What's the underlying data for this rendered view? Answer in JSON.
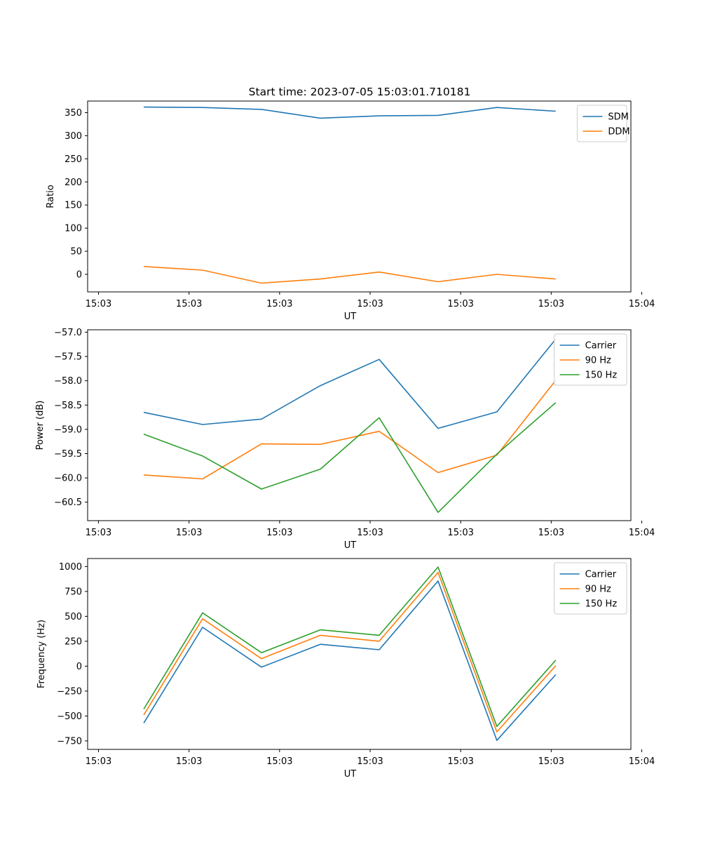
{
  "chart_data": [
    {
      "type": "line",
      "title": "Start time: 2023-07-05 15:03:01.710181",
      "xlabel": "UT",
      "ylabel": "Ratio",
      "xticks": [
        0,
        1,
        2,
        3,
        4,
        5,
        6
      ],
      "xtick_labels": [
        "15:03",
        "15:03",
        "15:03",
        "15:03",
        "15:03",
        "15:03",
        "15:04"
      ],
      "xlim": [
        -0.12,
        5.88
      ],
      "ylim": [
        -38,
        375
      ],
      "yticks": [
        0,
        50,
        100,
        150,
        200,
        250,
        300,
        350
      ],
      "x": [
        0.5,
        1.15,
        1.8,
        2.45,
        3.1,
        3.75,
        4.4,
        5.05
      ],
      "legend_position": "top-right",
      "series": [
        {
          "name": "SDM",
          "color": "#1f77b4",
          "values": [
            362,
            361,
            357,
            338,
            343,
            344,
            361,
            353
          ]
        },
        {
          "name": "DDM",
          "color": "#ff7f0e",
          "values": [
            17,
            9,
            -19,
            -10,
            5,
            -16,
            0,
            -10
          ]
        }
      ]
    },
    {
      "type": "line",
      "title": "",
      "xlabel": "UT",
      "ylabel": "Power (dB)",
      "xticks": [
        0,
        1,
        2,
        3,
        4,
        5,
        6
      ],
      "xtick_labels": [
        "15:03",
        "15:03",
        "15:03",
        "15:03",
        "15:03",
        "15:03",
        "15:04"
      ],
      "xlim": [
        -0.12,
        5.88
      ],
      "ylim": [
        -60.88,
        -56.95
      ],
      "yticks": [
        -60.5,
        -60.0,
        -59.5,
        -59.0,
        -58.5,
        -58.0,
        -57.5,
        -57.0
      ],
      "ytick_labels": [
        "−60.5",
        "−60.0",
        "−59.5",
        "−59.0",
        "−58.5",
        "−58.0",
        "−57.5",
        "−57.0"
      ],
      "x": [
        0.5,
        1.15,
        1.8,
        2.45,
        3.1,
        3.75,
        4.4,
        5.05
      ],
      "legend_position": "top-right",
      "series": [
        {
          "name": "Carrier",
          "color": "#1f77b4",
          "values": [
            -58.65,
            -58.9,
            -58.79,
            -58.1,
            -57.56,
            -58.98,
            -58.64,
            -57.14
          ]
        },
        {
          "name": "90 Hz",
          "color": "#ff7f0e",
          "values": [
            -59.94,
            -60.02,
            -59.3,
            -59.31,
            -59.04,
            -59.89,
            -59.53,
            -57.99
          ]
        },
        {
          "name": "150 Hz",
          "color": "#2ca02c",
          "values": [
            -59.1,
            -59.55,
            -60.23,
            -59.82,
            -58.76,
            -60.71,
            -59.51,
            -58.45
          ]
        }
      ]
    },
    {
      "type": "line",
      "title": "",
      "xlabel": "UT",
      "ylabel": "Frequency (Hz)",
      "xticks": [
        0,
        1,
        2,
        3,
        4,
        5,
        6
      ],
      "xtick_labels": [
        "15:03",
        "15:03",
        "15:03",
        "15:03",
        "15:03",
        "15:03",
        "15:04"
      ],
      "xlim": [
        -0.12,
        5.88
      ],
      "ylim": [
        -835,
        1080
      ],
      "yticks": [
        -750,
        -500,
        -250,
        0,
        250,
        500,
        750,
        1000
      ],
      "ytick_labels": [
        "−750",
        "−500",
        "−250",
        "0",
        "250",
        "500",
        "750",
        "1000"
      ],
      "x": [
        0.5,
        1.15,
        1.8,
        2.45,
        3.1,
        3.75,
        4.4,
        5.05
      ],
      "legend_position": "top-right",
      "series": [
        {
          "name": "Carrier",
          "color": "#1f77b4",
          "values": [
            -570,
            390,
            -10,
            220,
            165,
            855,
            -745,
            -85
          ]
        },
        {
          "name": "90 Hz",
          "color": "#ff7f0e",
          "values": [
            -490,
            475,
            75,
            310,
            250,
            940,
            -660,
            5
          ]
        },
        {
          "name": "150 Hz",
          "color": "#2ca02c",
          "values": [
            -430,
            535,
            135,
            365,
            310,
            995,
            -605,
            60
          ]
        }
      ]
    }
  ]
}
